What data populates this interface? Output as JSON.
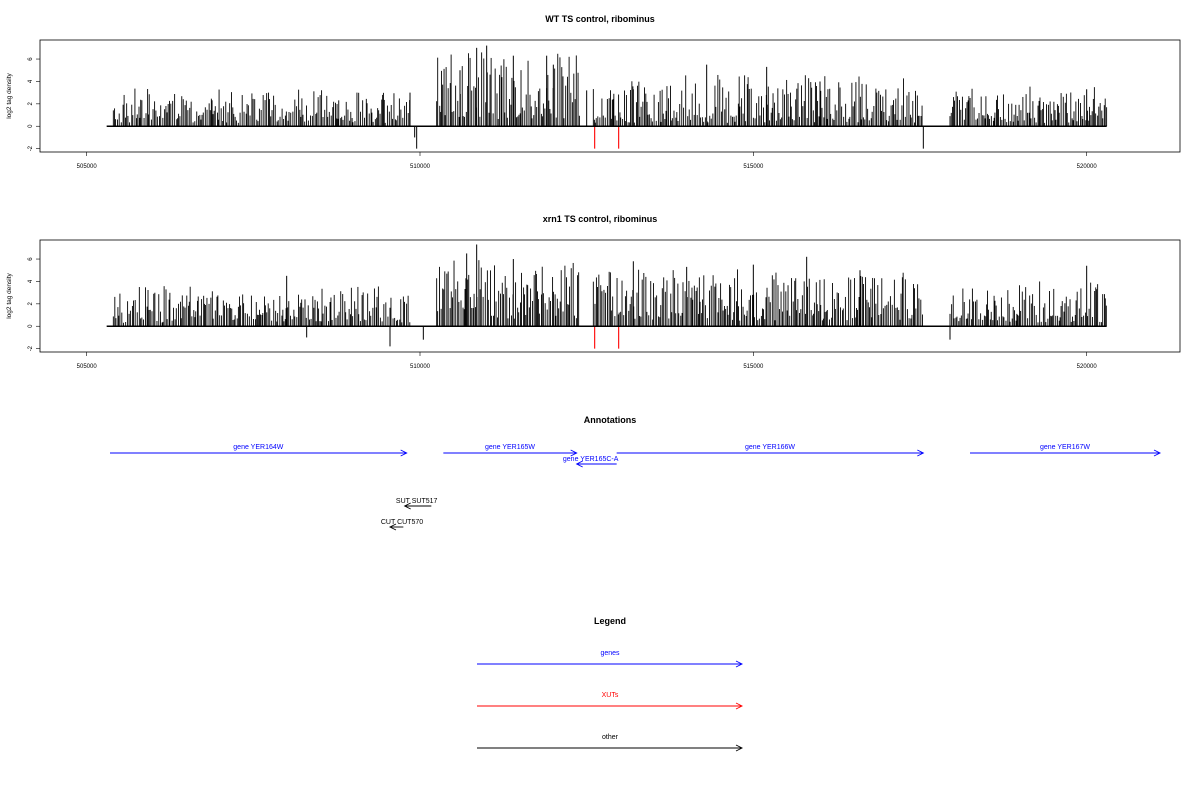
{
  "chart_data": {
    "type": "bar",
    "panels": [
      {
        "title": "WT TS control, ribominus",
        "ylabel": "log2 tag density",
        "xlim": [
          504300,
          521400
        ],
        "ylim": [
          -2.3,
          7.7
        ],
        "xticks": [
          505000,
          510000,
          515000,
          520000
        ],
        "yticks": [
          -2,
          0,
          2,
          4,
          6
        ],
        "baseline": [
          505300,
          520300
        ],
        "background_ranges": [
          [
            505400,
            509850,
            3.0,
            1.0
          ],
          [
            510250,
            512400,
            6.0,
            2.0
          ],
          [
            512600,
            517550,
            4.0,
            1.0
          ],
          [
            517950,
            520300,
            3.0,
            1.0
          ]
        ],
        "series": [
          {
            "color": "#000000",
            "x": [
              509850,
              509920,
              510600,
              510850,
              511000,
              511400,
              511900,
              512000,
              512500,
              513200,
              514300,
              515200,
              516000,
              520000
            ],
            "values": [
              3.0,
              -1.0,
              5.0,
              7.0,
              7.2,
              6.3,
              6.3,
              5.5,
              3.2,
              3.3,
              5.5,
              5.3,
              4.0,
              3.3
            ]
          },
          {
            "color": "#ff0000",
            "x": [
              512620,
              512980
            ],
            "values": [
              -2.0,
              -2.0
            ]
          },
          {
            "color": "#000000",
            "x": [
              509950,
              517550
            ],
            "values": [
              -2.0,
              -2.0
            ]
          }
        ]
      },
      {
        "title": "xrn1 TS control, ribominus",
        "ylabel": "log2 tag density",
        "xlim": [
          504300,
          521400
        ],
        "ylim": [
          -2.3,
          7.7
        ],
        "xticks": [
          505000,
          510000,
          515000,
          520000
        ],
        "yticks": [
          -2,
          0,
          2,
          4,
          6
        ],
        "baseline": [
          505300,
          520300
        ],
        "background_ranges": [
          [
            505400,
            509850,
            3.0,
            1.0
          ],
          [
            510250,
            512400,
            5.5,
            2.0
          ],
          [
            512600,
            517550,
            4.5,
            1.5
          ],
          [
            517950,
            520300,
            3.5,
            1.0
          ]
        ],
        "series": [
          {
            "color": "#000000",
            "x": [
              508000,
              510700,
              510850,
              511400,
              513200,
              514000,
              515000,
              515800,
              516600,
              520000
            ],
            "values": [
              4.5,
              6.5,
              7.3,
              6.0,
              5.8,
              5.3,
              5.5,
              6.2,
              5.0,
              5.4
            ]
          },
          {
            "color": "#ff0000",
            "x": [
              512620,
              512980
            ],
            "values": [
              -2.0,
              -2.0
            ]
          },
          {
            "color": "#000000",
            "x": [
              508300,
              509550,
              510050,
              517950
            ],
            "values": [
              -1.0,
              -1.8,
              -1.2,
              -1.2
            ]
          }
        ]
      }
    ],
    "annotations": {
      "title": "Annotations",
      "features": [
        {
          "label": "gene YER164W",
          "color": "#0000ff",
          "start": 505350,
          "end": 509800,
          "strand": "+",
          "row": 0
        },
        {
          "label": "gene YER165W",
          "color": "#0000ff",
          "start": 510350,
          "end": 512350,
          "strand": "+",
          "row": 0
        },
        {
          "label": "gene YER165C-A",
          "color": "#0000ff",
          "start": 512350,
          "end": 512950,
          "strand": "-",
          "row": 1
        },
        {
          "label": "gene YER166W",
          "color": "#0000ff",
          "start": 512950,
          "end": 517550,
          "strand": "+",
          "row": 0
        },
        {
          "label": "gene YER167W",
          "color": "#0000ff",
          "start": 518250,
          "end": 521100,
          "strand": "+",
          "row": 0
        },
        {
          "label": "SUT SUT517",
          "color": "#000000",
          "start": 509770,
          "end": 510170,
          "strand": "-",
          "row": 2
        },
        {
          "label": "CUT CUT570",
          "color": "#000000",
          "start": 509550,
          "end": 509750,
          "strand": "-",
          "row": 3
        }
      ]
    },
    "legend": {
      "title": "Legend",
      "items": [
        {
          "label": "genes",
          "color": "#0000ff"
        },
        {
          "label": "XUTs",
          "color": "#ff0000"
        },
        {
          "label": "other",
          "color": "#000000"
        }
      ]
    }
  }
}
